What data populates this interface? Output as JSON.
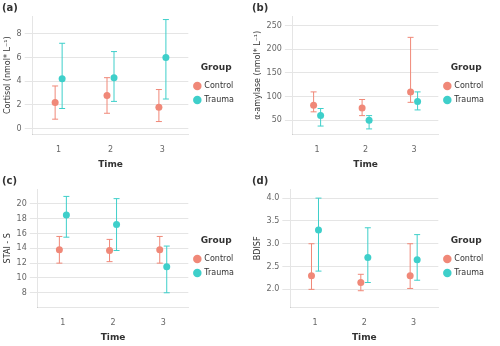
{
  "chart_data": [
    {
      "type": "scatter",
      "title": "(a)",
      "xlabel": "Time",
      "ylabel": "Cortisol (nmol* L⁻¹)",
      "legend": "right",
      "legend_title": "Group",
      "grid": "y",
      "marker": "circle",
      "x": [
        1,
        2,
        3
      ],
      "xlim": [
        0.5,
        3.5
      ],
      "xticks": [
        1,
        2,
        3
      ],
      "ylim": [
        -0.5,
        9.5
      ],
      "yticks": [
        0,
        2,
        4,
        6,
        8
      ],
      "series": [
        {
          "name": "Control",
          "color": "#F08878",
          "values": [
            2.2,
            2.8,
            1.8
          ],
          "error_low": [
            1.4,
            1.5,
            1.2
          ],
          "error_high": [
            1.4,
            1.5,
            1.5
          ]
        },
        {
          "name": "Trauma",
          "color": "#3ECFCA",
          "values": [
            4.2,
            4.3,
            6.0
          ],
          "error_low": [
            2.5,
            2.0,
            3.5
          ],
          "error_high": [
            3.0,
            2.2,
            3.2
          ]
        }
      ]
    },
    {
      "type": "scatter",
      "title": "(b)",
      "xlabel": "Time",
      "ylabel": "α-amylase (nmol* L⁻¹)",
      "legend": "right",
      "legend_title": "Group",
      "grid": "y",
      "marker": "circle",
      "x": [
        1,
        2,
        3
      ],
      "xlim": [
        0.5,
        3.5
      ],
      "xticks": [
        1,
        2,
        3
      ],
      "ylim": [
        20,
        270
      ],
      "yticks": [
        50,
        100,
        150,
        200,
        250
      ],
      "series": [
        {
          "name": "Control",
          "color": "#F08878",
          "values": [
            82,
            76,
            110
          ],
          "error_low": [
            14,
            16,
            22
          ],
          "error_high": [
            28,
            18,
            115
          ]
        },
        {
          "name": "Trauma",
          "color": "#3ECFCA",
          "values": [
            60,
            50,
            90
          ],
          "error_low": [
            22,
            18,
            18
          ],
          "error_high": [
            15,
            10,
            20
          ]
        }
      ]
    },
    {
      "type": "scatter",
      "title": "(c)",
      "xlabel": "Time",
      "ylabel": "STAI - S",
      "legend": "right",
      "legend_title": "Group",
      "grid": "y",
      "marker": "circle",
      "x": [
        1,
        2,
        3
      ],
      "xlim": [
        0.5,
        3.5
      ],
      "xticks": [
        1,
        2,
        3
      ],
      "ylim": [
        6,
        22
      ],
      "yticks": [
        8,
        10,
        12,
        14,
        16,
        18,
        20
      ],
      "series": [
        {
          "name": "Control",
          "color": "#F08878",
          "values": [
            13.8,
            13.7,
            13.8
          ],
          "error_low": [
            1.8,
            1.5,
            1.8
          ],
          "error_high": [
            1.8,
            1.5,
            1.8
          ]
        },
        {
          "name": "Trauma",
          "color": "#3ECFCA",
          "values": [
            18.5,
            17.2,
            11.5
          ],
          "error_low": [
            3.0,
            3.5,
            3.5
          ],
          "error_high": [
            2.5,
            3.5,
            2.8
          ]
        }
      ]
    },
    {
      "type": "scatter",
      "title": "(d)",
      "xlabel": "Time",
      "ylabel": "BDISF",
      "legend": "right",
      "legend_title": "Group",
      "grid": "y",
      "marker": "circle",
      "x": [
        1,
        2,
        3
      ],
      "xlim": [
        0.5,
        3.5
      ],
      "xticks": [
        1,
        2,
        3
      ],
      "ylim": [
        1.6,
        4.2
      ],
      "yticks": [
        {
          "value": 2.0,
          "label": "2.0"
        },
        2.5,
        {
          "value": 3.0,
          "label": "3.0"
        },
        3.5,
        {
          "value": 4.0,
          "label": "4.0"
        }
      ],
      "series": [
        {
          "name": "Control",
          "color": "#F08878",
          "values": [
            2.3,
            2.15,
            2.3
          ],
          "error_low": [
            0.3,
            0.18,
            0.28
          ],
          "error_high": [
            0.7,
            0.18,
            0.7
          ]
        },
        {
          "name": "Trauma",
          "color": "#3ECFCA",
          "values": [
            3.3,
            2.7,
            2.65
          ],
          "error_low": [
            0.9,
            0.55,
            0.45
          ],
          "error_high": [
            0.7,
            0.65,
            0.55
          ]
        }
      ]
    }
  ]
}
